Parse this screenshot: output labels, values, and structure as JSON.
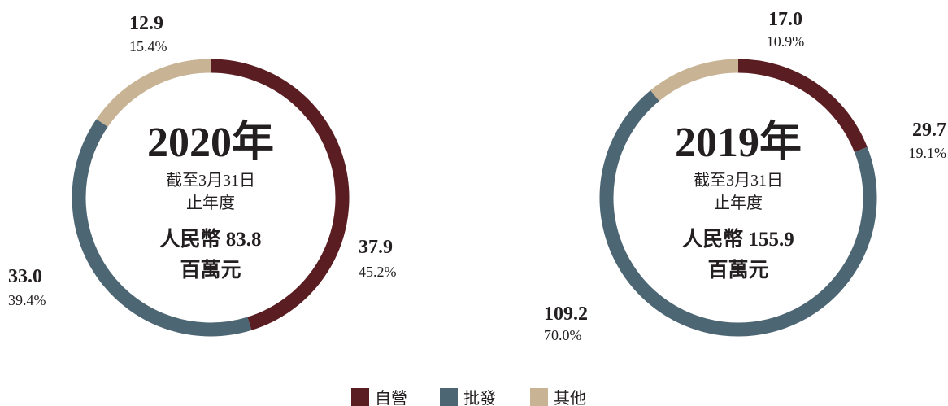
{
  "chart_data": [
    {
      "type": "pie",
      "center_title": "2020年",
      "center_subtitle": [
        "截至3月31日",
        "止年度"
      ],
      "center_total": [
        "人民幣 83.8",
        "百萬元"
      ],
      "slices": [
        {
          "category": "自營",
          "value": 37.9,
          "percent": "45.2%",
          "color": "#5a1d22",
          "value_label": "37.9"
        },
        {
          "category": "批發",
          "value": 33.0,
          "percent": "39.4%",
          "color": "#4d6674",
          "value_label": "33.0"
        },
        {
          "category": "其他",
          "value": 12.9,
          "percent": "15.4%",
          "color": "#c8b394",
          "value_label": "12.9"
        }
      ]
    },
    {
      "type": "pie",
      "center_title": "2019年",
      "center_subtitle": [
        "截至3月31日",
        "止年度"
      ],
      "center_total": [
        "人民幣 155.9",
        "百萬元"
      ],
      "slices": [
        {
          "category": "自營",
          "value": 29.7,
          "percent": "19.1%",
          "color": "#5a1d22",
          "value_label": "29.7"
        },
        {
          "category": "批發",
          "value": 109.2,
          "percent": "70.0%",
          "color": "#4d6674",
          "value_label": "109.2"
        },
        {
          "category": "其他",
          "value": 17.0,
          "percent": "10.9%",
          "color": "#c8b394",
          "value_label": "17.0"
        }
      ]
    }
  ],
  "legend": [
    {
      "label": "自營",
      "color": "#5a1d22"
    },
    {
      "label": "批發",
      "color": "#4d6674"
    },
    {
      "label": "其他",
      "color": "#c8b394"
    }
  ]
}
